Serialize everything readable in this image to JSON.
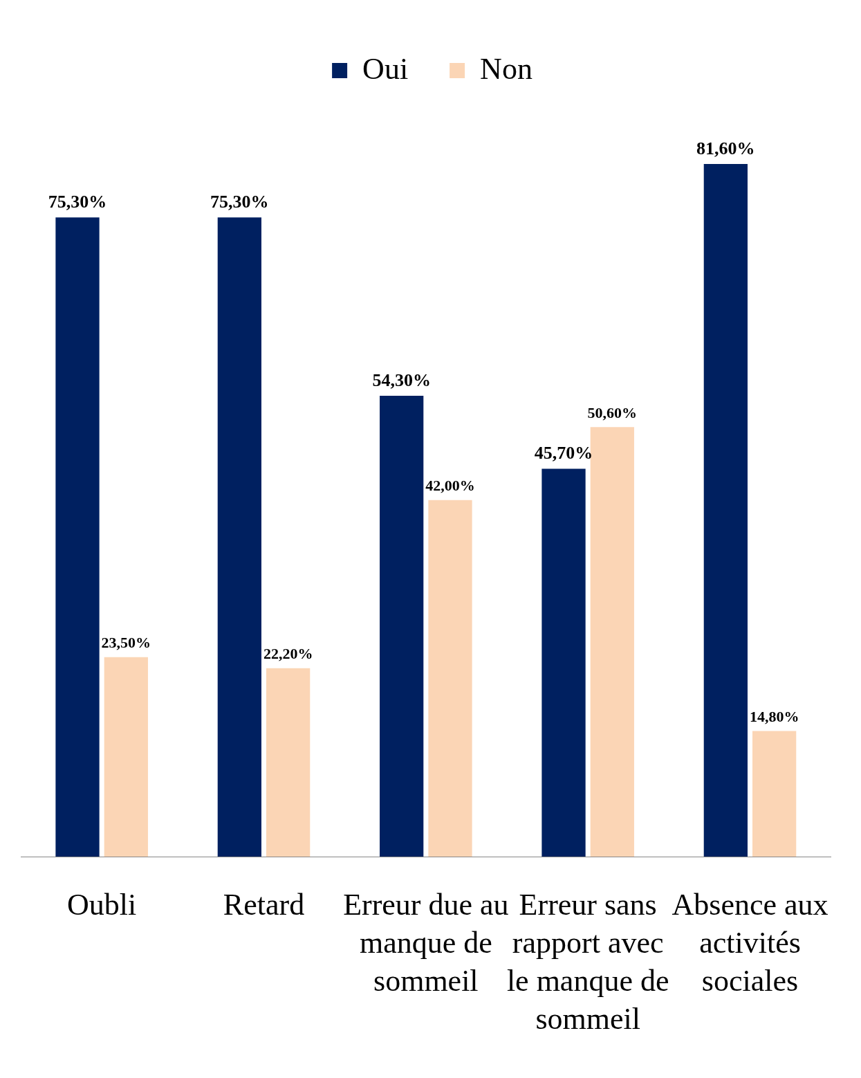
{
  "chart_data": {
    "type": "bar",
    "categories": [
      "Oubli",
      "Retard",
      "Erreur due au manque de sommeil",
      "Erreur sans rapport avec le manque de sommeil",
      "Absence aux activités sociales"
    ],
    "series": [
      {
        "name": "Oui",
        "color": "#002060",
        "values": [
          75.3,
          75.3,
          54.3,
          45.7,
          81.6
        ],
        "value_labels": [
          "75,30%",
          "75,30%",
          "54,30%",
          "45,70%",
          "81,60%"
        ]
      },
      {
        "name": "Non",
        "color": "#fbd5b5",
        "values": [
          23.5,
          22.2,
          42.0,
          50.6,
          14.8
        ],
        "value_labels": [
          "23,50%",
          "22,20%",
          "42,00%",
          "50,60%",
          "14,80%"
        ]
      }
    ],
    "legend": "top",
    "grid": false
  }
}
